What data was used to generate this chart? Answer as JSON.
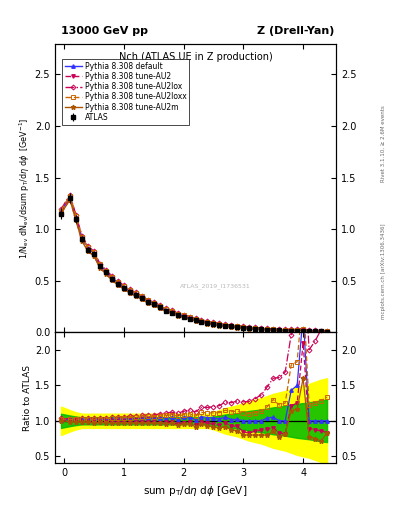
{
  "title_top_left": "13000 GeV pp",
  "title_top_right": "Z (Drell-Yan)",
  "plot_title": "Nch (ATLAS UE in Z production)",
  "xlabel": "sum p_{T}/d\\eta d\\phi [GeV]",
  "ylabel_main": "1/N_{ev} dN_{ev}/dsum p_{T}/d\\eta d\\phi  [GeV]",
  "ylabel_ratio": "Ratio to ATLAS",
  "right_label_top": "Rivet 3.1.10, ≥ 2.6M events",
  "right_label_bot": "mcplots.cern.ch [arXiv:1306.3436]",
  "watermark": "ATLAS_2019_I1736531",
  "xlim": [
    -0.15,
    4.55
  ],
  "ylim_main": [
    0.0,
    2.8
  ],
  "ylim_ratio": [
    0.4,
    2.25
  ],
  "x_atlas": [
    -0.05,
    0.1,
    0.2,
    0.3,
    0.4,
    0.5,
    0.6,
    0.7,
    0.8,
    0.9,
    1.0,
    1.1,
    1.2,
    1.3,
    1.4,
    1.5,
    1.6,
    1.7,
    1.8,
    1.9,
    2.0,
    2.1,
    2.2,
    2.3,
    2.4,
    2.5,
    2.6,
    2.7,
    2.8,
    2.9,
    3.0,
    3.1,
    3.2,
    3.3,
    3.4,
    3.5,
    3.6,
    3.7,
    3.8,
    3.9,
    4.0,
    4.1,
    4.2,
    4.3,
    4.4
  ],
  "y_atlas": [
    1.15,
    1.3,
    1.1,
    0.9,
    0.8,
    0.76,
    0.64,
    0.58,
    0.52,
    0.47,
    0.43,
    0.39,
    0.36,
    0.33,
    0.29,
    0.27,
    0.24,
    0.21,
    0.19,
    0.17,
    0.15,
    0.13,
    0.12,
    0.1,
    0.09,
    0.08,
    0.07,
    0.06,
    0.055,
    0.05,
    0.045,
    0.04,
    0.035,
    0.03,
    0.025,
    0.02,
    0.018,
    0.016,
    0.014,
    0.012,
    0.01,
    0.009,
    0.008,
    0.007,
    0.006
  ],
  "y_atlas_err": [
    0.05,
    0.05,
    0.04,
    0.03,
    0.025,
    0.022,
    0.018,
    0.015,
    0.013,
    0.012,
    0.01,
    0.009,
    0.008,
    0.008,
    0.007,
    0.006,
    0.006,
    0.005,
    0.005,
    0.004,
    0.004,
    0.003,
    0.003,
    0.003,
    0.002,
    0.002,
    0.002,
    0.002,
    0.002,
    0.002,
    0.002,
    0.002,
    0.002,
    0.002,
    0.002,
    0.002,
    0.002,
    0.002,
    0.002,
    0.002,
    0.002,
    0.002,
    0.002,
    0.002,
    0.002
  ],
  "y_atlas_sys_lo": [
    0.2,
    0.15,
    0.12,
    0.1,
    0.1,
    0.1,
    0.1,
    0.1,
    0.1,
    0.1,
    0.1,
    0.1,
    0.1,
    0.1,
    0.1,
    0.1,
    0.1,
    0.1,
    0.1,
    0.1,
    0.1,
    0.1,
    0.1,
    0.1,
    0.1,
    0.12,
    0.15,
    0.18,
    0.2,
    0.22,
    0.25,
    0.28,
    0.3,
    0.32,
    0.35,
    0.38,
    0.4,
    0.42,
    0.45,
    0.48,
    0.5,
    0.52,
    0.55,
    0.58,
    0.6
  ],
  "y_atlas_sys_hi": [
    0.2,
    0.15,
    0.12,
    0.1,
    0.1,
    0.1,
    0.1,
    0.1,
    0.1,
    0.1,
    0.1,
    0.1,
    0.1,
    0.1,
    0.1,
    0.1,
    0.1,
    0.1,
    0.1,
    0.1,
    0.1,
    0.1,
    0.1,
    0.1,
    0.1,
    0.12,
    0.15,
    0.18,
    0.2,
    0.22,
    0.25,
    0.28,
    0.3,
    0.32,
    0.35,
    0.38,
    0.4,
    0.42,
    0.45,
    0.48,
    0.5,
    0.52,
    0.55,
    0.58,
    0.6
  ],
  "x_mc": [
    -0.05,
    0.1,
    0.2,
    0.3,
    0.4,
    0.5,
    0.6,
    0.7,
    0.8,
    0.9,
    1.0,
    1.1,
    1.2,
    1.3,
    1.4,
    1.5,
    1.6,
    1.7,
    1.8,
    1.9,
    2.0,
    2.1,
    2.2,
    2.3,
    2.4,
    2.5,
    2.6,
    2.7,
    2.8,
    2.9,
    3.0,
    3.1,
    3.2,
    3.3,
    3.4,
    3.5,
    3.6,
    3.7,
    3.8,
    3.9,
    4.0,
    4.1,
    4.2,
    4.3,
    4.4
  ],
  "y_default": [
    1.17,
    1.32,
    1.12,
    0.92,
    0.82,
    0.77,
    0.655,
    0.592,
    0.532,
    0.482,
    0.441,
    0.401,
    0.371,
    0.341,
    0.301,
    0.279,
    0.249,
    0.219,
    0.199,
    0.174,
    0.157,
    0.137,
    0.122,
    0.106,
    0.094,
    0.083,
    0.072,
    0.063,
    0.056,
    0.051,
    0.045,
    0.04,
    0.035,
    0.03,
    0.026,
    0.021,
    0.018,
    0.016,
    0.02,
    0.018,
    0.025,
    0.009,
    0.008,
    0.007,
    0.006
  ],
  "y_AU2": [
    1.16,
    1.29,
    1.09,
    0.89,
    0.79,
    0.745,
    0.63,
    0.57,
    0.51,
    0.462,
    0.423,
    0.383,
    0.353,
    0.323,
    0.285,
    0.264,
    0.234,
    0.205,
    0.186,
    0.162,
    0.146,
    0.127,
    0.113,
    0.098,
    0.087,
    0.076,
    0.066,
    0.058,
    0.051,
    0.046,
    0.038,
    0.033,
    0.03,
    0.026,
    0.022,
    0.018,
    0.015,
    0.013,
    0.017,
    0.015,
    0.021,
    0.008,
    0.007,
    0.006,
    0.005
  ],
  "y_AU2lox": [
    1.19,
    1.335,
    1.135,
    0.935,
    0.835,
    0.785,
    0.665,
    0.605,
    0.545,
    0.495,
    0.455,
    0.415,
    0.385,
    0.355,
    0.315,
    0.293,
    0.263,
    0.233,
    0.213,
    0.188,
    0.17,
    0.15,
    0.135,
    0.119,
    0.107,
    0.096,
    0.085,
    0.076,
    0.069,
    0.064,
    0.057,
    0.051,
    0.046,
    0.041,
    0.037,
    0.032,
    0.029,
    0.027,
    0.031,
    0.029,
    0.035,
    0.018,
    0.017,
    0.016,
    0.015
  ],
  "y_AU2loxx": [
    1.18,
    1.325,
    1.125,
    0.925,
    0.825,
    0.775,
    0.658,
    0.598,
    0.538,
    0.488,
    0.448,
    0.408,
    0.378,
    0.348,
    0.308,
    0.286,
    0.256,
    0.226,
    0.206,
    0.181,
    0.163,
    0.143,
    0.128,
    0.112,
    0.1,
    0.089,
    0.078,
    0.069,
    0.062,
    0.057,
    0.05,
    0.044,
    0.039,
    0.034,
    0.03,
    0.026,
    0.022,
    0.02,
    0.025,
    0.022,
    0.028,
    0.011,
    0.01,
    0.009,
    0.008
  ],
  "y_AU2m": [
    1.15,
    1.285,
    1.085,
    0.885,
    0.785,
    0.738,
    0.625,
    0.565,
    0.505,
    0.457,
    0.418,
    0.379,
    0.349,
    0.32,
    0.282,
    0.26,
    0.231,
    0.202,
    0.183,
    0.159,
    0.143,
    0.124,
    0.11,
    0.095,
    0.084,
    0.073,
    0.063,
    0.055,
    0.048,
    0.043,
    0.036,
    0.032,
    0.028,
    0.024,
    0.02,
    0.017,
    0.014,
    0.013,
    0.016,
    0.014,
    0.016,
    0.007,
    0.006,
    0.005,
    0.005
  ],
  "color_atlas": "#000000",
  "color_default": "#3333ff",
  "color_AU2": "#cc0055",
  "color_AU2lox": "#cc0055",
  "color_AU2loxx": "#cc6600",
  "color_AU2m": "#aa5500",
  "band_yellow": "#ffff00",
  "band_green": "#00bb00",
  "legend_labels": [
    "ATLAS",
    "Pythia 8.308 default",
    "Pythia 8.308 tune-AU2",
    "Pythia 8.308 tune-AU2lox",
    "Pythia 8.308 tune-AU2loxx",
    "Pythia 8.308 tune-AU2m"
  ]
}
